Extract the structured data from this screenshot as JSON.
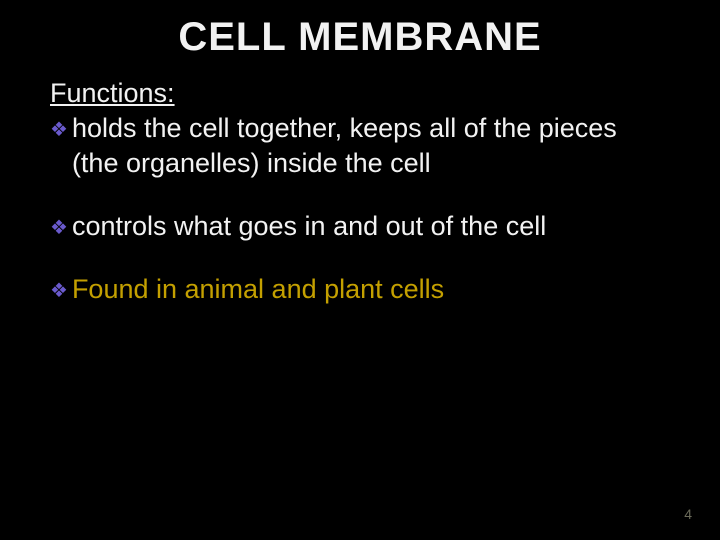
{
  "slide": {
    "title": "CELL MEMBRANE",
    "subheading": "Functions:",
    "bullets": [
      {
        "text": "holds the cell together, keeps all of the pieces (the organelles) inside the cell",
        "text_color": "#f2f2f2"
      },
      {
        "text": "controls what goes in and out of the cell",
        "text_color": "#f2f2f2"
      },
      {
        "text": "Found in animal and plant cells",
        "text_color": "#c4a000"
      }
    ],
    "bullet_marker_color": "#6a5acd",
    "background_color": "#000000",
    "title_color": "#f2f2f2",
    "title_fontsize": 40,
    "body_fontsize": 27,
    "page_number": "4",
    "page_number_color": "#6b6b5a"
  }
}
